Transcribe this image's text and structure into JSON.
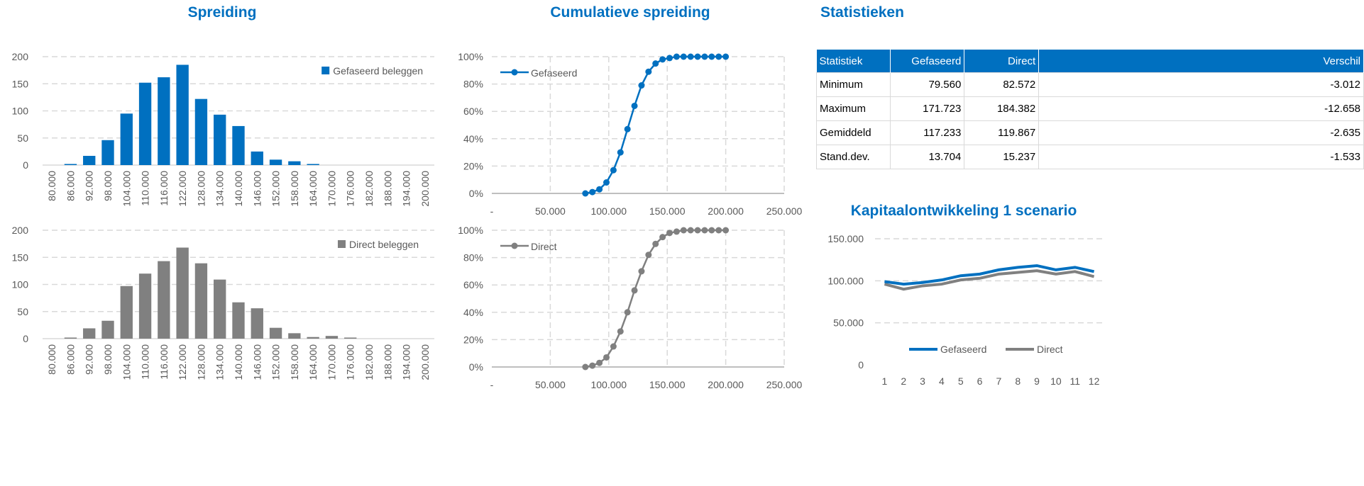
{
  "titles": {
    "spreiding": "Spreiding",
    "cumulatief": "Cumulatieve spreiding",
    "statistieken": "Statistieken",
    "kapitaal": "Kapitaalontwikkeling 1 scenario"
  },
  "colors": {
    "gefaseerd": "#0070C0",
    "direct": "#808080",
    "grid": "#D9D9D9"
  },
  "stats": {
    "headers": [
      "Statistiek",
      "Gefaseerd",
      "Direct",
      "Verschil"
    ],
    "rows": [
      [
        "Minimum",
        "79.560",
        "82.572",
        "-3.012"
      ],
      [
        "Maximum",
        "171.723",
        "184.382",
        "-12.658"
      ],
      [
        "Gemiddeld",
        "117.233",
        "119.867",
        "-2.635"
      ],
      [
        "Stand.dev.",
        "13.704",
        "15.237",
        "-1.533"
      ]
    ]
  },
  "chart_data": [
    {
      "type": "bar",
      "id": "hist-gefaseerd",
      "legend": "Gefaseerd beleggen",
      "legend_position": "top-right",
      "grid": true,
      "categories": [
        "80.000",
        "86.000",
        "92.000",
        "98.000",
        "104.000",
        "110.000",
        "116.000",
        "122.000",
        "128.000",
        "134.000",
        "140.000",
        "146.000",
        "152.000",
        "158.000",
        "164.000",
        "170.000",
        "176.000",
        "182.000",
        "188.000",
        "194.000",
        "200.000"
      ],
      "values": [
        0,
        2,
        17,
        46,
        95,
        152,
        162,
        185,
        122,
        93,
        72,
        25,
        10,
        7,
        2,
        0,
        0,
        0,
        0,
        0,
        0
      ],
      "ylim": [
        0,
        200
      ],
      "yticks": [
        "0",
        "50",
        "100",
        "150",
        "200"
      ]
    },
    {
      "type": "bar",
      "id": "hist-direct",
      "legend": "Direct beleggen",
      "legend_position": "top-right",
      "grid": true,
      "categories": [
        "80.000",
        "86.000",
        "92.000",
        "98.000",
        "104.000",
        "110.000",
        "116.000",
        "122.000",
        "128.000",
        "134.000",
        "140.000",
        "146.000",
        "152.000",
        "158.000",
        "164.000",
        "170.000",
        "176.000",
        "182.000",
        "188.000",
        "194.000",
        "200.000"
      ],
      "values": [
        0,
        2,
        19,
        33,
        97,
        120,
        143,
        168,
        139,
        109,
        67,
        56,
        20,
        10,
        3,
        5,
        2,
        0,
        0,
        0,
        0
      ],
      "ylim": [
        0,
        200
      ],
      "yticks": [
        "0",
        "50",
        "100",
        "150",
        "200"
      ]
    },
    {
      "type": "line",
      "id": "cum-gefaseerd",
      "legend": "Gefaseerd",
      "legend_position": "top-left",
      "grid": true,
      "x": [
        80000,
        86000,
        92000,
        98000,
        104000,
        110000,
        116000,
        122000,
        128000,
        134000,
        140000,
        146000,
        152000,
        158000,
        164000,
        170000,
        176000,
        182000,
        188000,
        194000,
        200000
      ],
      "y": [
        0,
        1,
        3,
        8,
        17,
        30,
        47,
        64,
        79,
        89,
        95,
        98,
        99,
        100,
        100,
        100,
        100,
        100,
        100,
        100,
        100
      ],
      "xlim": [
        0,
        250000
      ],
      "xticks": [
        "-",
        "50.000",
        "100.000",
        "150.000",
        "200.000",
        "250.000"
      ],
      "ylim": [
        0,
        100
      ],
      "yticks": [
        "0%",
        "20%",
        "40%",
        "60%",
        "80%",
        "100%"
      ]
    },
    {
      "type": "line",
      "id": "cum-direct",
      "legend": "Direct",
      "legend_position": "top-left",
      "grid": true,
      "x": [
        80000,
        86000,
        92000,
        98000,
        104000,
        110000,
        116000,
        122000,
        128000,
        134000,
        140000,
        146000,
        152000,
        158000,
        164000,
        170000,
        176000,
        182000,
        188000,
        194000,
        200000
      ],
      "y": [
        0,
        1,
        3,
        7,
        15,
        26,
        40,
        56,
        70,
        82,
        90,
        95,
        98,
        99,
        100,
        100,
        100,
        100,
        100,
        100,
        100
      ],
      "xlim": [
        0,
        250000
      ],
      "xticks": [
        "-",
        "50.000",
        "100.000",
        "150.000",
        "200.000",
        "250.000"
      ],
      "ylim": [
        0,
        100
      ],
      "yticks": [
        "0%",
        "20%",
        "40%",
        "60%",
        "80%",
        "100%"
      ]
    },
    {
      "type": "line",
      "id": "kapitaal",
      "legend_position": "bottom",
      "grid": true,
      "categories": [
        "1",
        "2",
        "3",
        "4",
        "5",
        "6",
        "7",
        "8",
        "9",
        "10",
        "11",
        "12"
      ],
      "series": [
        {
          "name": "Gefaseerd",
          "values": [
            99000,
            96000,
            98000,
            101000,
            106000,
            108000,
            113000,
            116000,
            118000,
            113000,
            116000,
            111000
          ]
        },
        {
          "name": "Direct",
          "values": [
            96000,
            90000,
            94000,
            96000,
            101000,
            103000,
            108000,
            110000,
            112000,
            108000,
            111000,
            105000
          ]
        }
      ],
      "ylim": [
        0,
        150000
      ],
      "yticks": [
        "0",
        "50.000",
        "100.000",
        "150.000"
      ]
    }
  ]
}
